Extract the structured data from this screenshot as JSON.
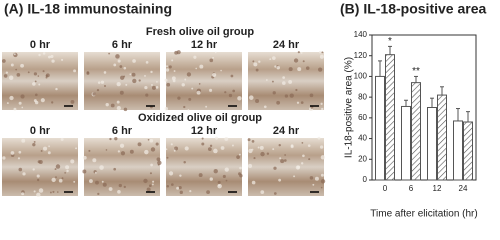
{
  "panel_a": {
    "title": "(A) IL-18 immunostaining",
    "groups": [
      {
        "label": "Fresh olive oil group",
        "times": [
          "0 hr",
          "6 hr",
          "12 hr",
          "24 hr"
        ]
      },
      {
        "label": "Oxidized olive oil group",
        "times": [
          "0 hr",
          "6 hr",
          "12 hr",
          "24 hr"
        ]
      }
    ]
  },
  "chart_data": {
    "type": "bar",
    "title": "(B) IL-18-positive area",
    "ylabel": "IL-18-positive area (%)",
    "xlabel": "Time after elicitation (hr)",
    "categories": [
      "0",
      "6",
      "12",
      "24"
    ],
    "series": [
      {
        "color": "#ffffff",
        "hatch": false,
        "values": [
          100,
          71,
          70,
          57
        ],
        "errors": [
          15,
          6,
          9,
          12
        ]
      },
      {
        "color": "#ffffff",
        "hatch": true,
        "values": [
          121,
          94,
          82,
          56
        ],
        "errors": [
          8,
          6,
          8,
          10
        ],
        "markers": [
          "*",
          "**",
          null,
          null
        ]
      }
    ],
    "ylim": [
      0,
      140
    ],
    "yticks": [
      0,
      20,
      40,
      60,
      80,
      100,
      120,
      140
    ]
  }
}
